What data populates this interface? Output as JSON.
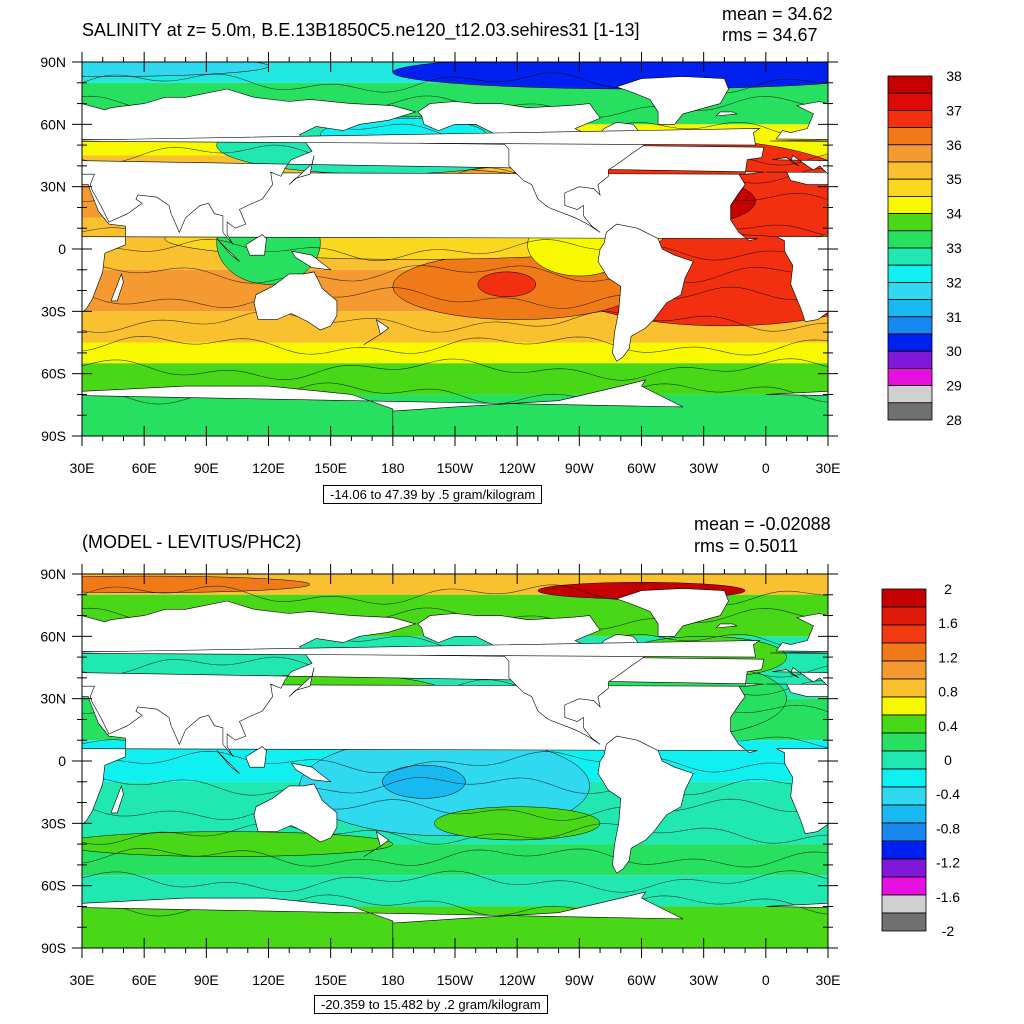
{
  "top": {
    "title": "SALINITY at z=   5.0m, B.E.13B1850C5.ne120_t12.03.sehires31 [1-13]",
    "mean": "mean = 34.62",
    "rms": "rms = 34.67",
    "range_text": "-14.06 to 47.39 by .5 gram/kilogram",
    "colorbar_labels": [
      "38",
      "37",
      "36",
      "35",
      "34",
      "33",
      "32",
      "31",
      "30",
      "29",
      "28"
    ],
    "colorbar_colors": [
      "#c40000",
      "#de0a0a",
      "#f23010",
      "#f07a18",
      "#f59a30",
      "#f9c030",
      "#fbd820",
      "#f8f800",
      "#48d818",
      "#28e060",
      "#20e8b0",
      "#10f0f0",
      "#30d8f0",
      "#18b8f0",
      "#1888f0",
      "#0020f0",
      "#8018d8",
      "#e810e0",
      "#d0d0d0",
      "#707070"
    ],
    "y_labels": [
      "90N",
      "60N",
      "30N",
      "0",
      "30S",
      "60S",
      "90S"
    ],
    "x_labels": [
      "30E",
      "60E",
      "90E",
      "120E",
      "150E",
      "180",
      "150W",
      "120W",
      "90W",
      "60W",
      "30W",
      "0",
      "30E"
    ]
  },
  "bottom": {
    "title": "(MODEL - LEVITUS/PHC2)",
    "mean": "mean = -0.02088",
    "rms": "rms = 0.5011",
    "range_text": "-20.359 to 15.482 by .2 gram/kilogram",
    "colorbar_labels": [
      "2",
      "1.6",
      "1.2",
      "0.8",
      "0.4",
      "0",
      "-0.4",
      "-0.8",
      "-1.2",
      "-1.6",
      "-2"
    ],
    "colorbar_colors": [
      "#c40000",
      "#de1a0a",
      "#f23a10",
      "#f07a18",
      "#f59a30",
      "#f9c030",
      "#f8f800",
      "#48d818",
      "#28e060",
      "#20e8b0",
      "#10f0f0",
      "#30d8f0",
      "#18b8f0",
      "#1888f0",
      "#0020f0",
      "#8018d8",
      "#e810e0",
      "#d0d0d0",
      "#707070"
    ],
    "y_labels": [
      "90N",
      "60N",
      "30N",
      "0",
      "30S",
      "60S",
      "90S"
    ],
    "x_labels": [
      "30E",
      "60E",
      "90E",
      "120E",
      "150E",
      "180",
      "150W",
      "120W",
      "90W",
      "60W",
      "30W",
      "0",
      "30E"
    ]
  }
}
